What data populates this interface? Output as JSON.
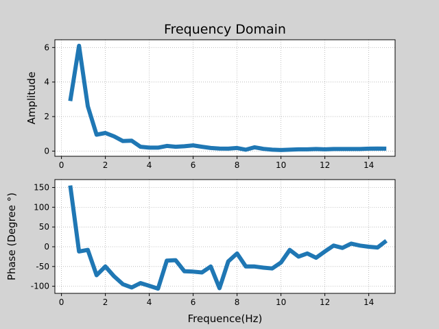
{
  "figure": {
    "background": "#d3d3d3",
    "line_color": "#1f77b4"
  },
  "chart_data": [
    {
      "type": "line",
      "title": "Frequency Domain",
      "xlabel": "",
      "ylabel": "Amplitude",
      "xlim": [
        -0.3,
        15.2
      ],
      "ylim": [
        -0.3,
        6.45
      ],
      "xticks": [
        0,
        2,
        4,
        6,
        8,
        10,
        12,
        14
      ],
      "yticks": [
        0,
        2,
        4,
        6
      ],
      "grid": true,
      "series": [
        {
          "x": [
            0.4,
            0.8,
            1.2,
            1.6,
            2.0,
            2.4,
            2.8,
            3.2,
            3.6,
            4.0,
            4.4,
            4.8,
            5.2,
            5.6,
            6.0,
            6.4,
            6.8,
            7.2,
            7.6,
            8.0,
            8.4,
            8.8,
            9.2,
            9.6,
            10.0,
            10.4,
            10.8,
            11.2,
            11.6,
            12.0,
            12.4,
            12.8,
            13.2,
            13.6,
            14.0,
            14.4,
            14.8
          ],
          "values": [
            2.9,
            6.1,
            2.6,
            0.95,
            1.05,
            0.85,
            0.58,
            0.6,
            0.25,
            0.2,
            0.2,
            0.3,
            0.25,
            0.28,
            0.33,
            0.25,
            0.18,
            0.15,
            0.14,
            0.18,
            0.08,
            0.22,
            0.13,
            0.08,
            0.06,
            0.08,
            0.1,
            0.1,
            0.12,
            0.1,
            0.12,
            0.12,
            0.12,
            0.12,
            0.14,
            0.15,
            0.14
          ]
        }
      ]
    },
    {
      "type": "line",
      "title": "",
      "xlabel": "Frequence(Hz)",
      "ylabel": "Phase (Degree °)",
      "xlim": [
        -0.3,
        15.2
      ],
      "ylim": [
        -118,
        170
      ],
      "xticks": [
        0,
        2,
        4,
        6,
        8,
        10,
        12,
        14
      ],
      "yticks": [
        -100,
        -50,
        0,
        50,
        100,
        150
      ],
      "grid": true,
      "series": [
        {
          "x": [
            0.4,
            0.8,
            1.2,
            1.6,
            2.0,
            2.4,
            2.8,
            3.2,
            3.6,
            4.0,
            4.4,
            4.8,
            5.2,
            5.6,
            6.0,
            6.4,
            6.8,
            7.2,
            7.6,
            8.0,
            8.4,
            8.8,
            9.2,
            9.6,
            10.0,
            10.4,
            10.8,
            11.2,
            11.6,
            12.0,
            12.4,
            12.8,
            13.2,
            13.6,
            14.0,
            14.4,
            14.8
          ],
          "values": [
            155,
            -12,
            -8,
            -72,
            -50,
            -75,
            -95,
            -103,
            -92,
            -99,
            -106,
            -35,
            -34,
            -62,
            -63,
            -65,
            -50,
            -105,
            -37,
            -17,
            -50,
            -50,
            -53,
            -55,
            -40,
            -8,
            -25,
            -17,
            -28,
            -12,
            3,
            -3,
            8,
            3,
            0,
            -2,
            15
          ]
        }
      ]
    }
  ]
}
